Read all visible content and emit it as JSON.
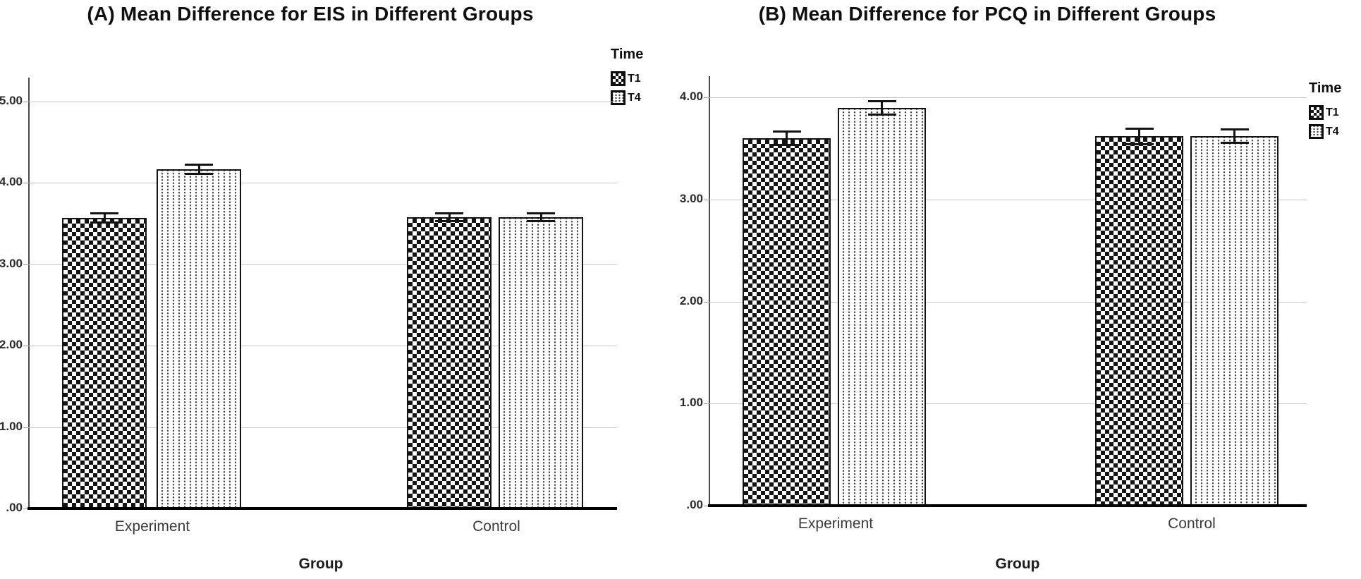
{
  "figure": {
    "background": "#ffffff",
    "grid_color": "#c6c6c6",
    "bar_outline": "#141414"
  },
  "chart_data": [
    {
      "type": "bar",
      "panel": "A",
      "title": "(A) Mean Difference for EIS in Different Groups",
      "xlabel": "Group",
      "ylabel": "",
      "categories": [
        "Experiment",
        "Control"
      ],
      "legend": {
        "title": "Time",
        "position": "right",
        "items": [
          {
            "label": "T1",
            "pattern": "checker"
          },
          {
            "label": "T4",
            "pattern": "dots"
          }
        ]
      },
      "yticks": [
        {
          "label": "5.00",
          "value": 5
        },
        {
          "label": "4.00",
          "value": 4
        },
        {
          "label": "3.00",
          "value": 3
        },
        {
          "label": "2.00",
          "value": 2
        },
        {
          "label": "1.00",
          "value": 1
        },
        {
          "label": ".00",
          "value": 0
        }
      ],
      "ylim": [
        0,
        5.3
      ],
      "grid": true,
      "error_bars": true,
      "series": [
        {
          "name": "T1",
          "pattern": "checker",
          "values": [
            3.57,
            3.58
          ],
          "errors": [
            0.06,
            0.05
          ]
        },
        {
          "name": "T4",
          "pattern": "dots",
          "values": [
            4.17,
            3.58
          ],
          "errors": [
            0.06,
            0.05
          ]
        }
      ]
    },
    {
      "type": "bar",
      "panel": "B",
      "title": "(B) Mean Difference for PCQ in Different Groups",
      "xlabel": "Group",
      "ylabel": "",
      "categories": [
        "Experiment",
        "Control"
      ],
      "legend": {
        "title": "Time",
        "position": "right",
        "items": [
          {
            "label": "T1",
            "pattern": "checker"
          },
          {
            "label": "T4",
            "pattern": "dots"
          }
        ]
      },
      "yticks": [
        {
          "label": "4.00",
          "value": 4
        },
        {
          "label": "3.00",
          "value": 3
        },
        {
          "label": "2.00",
          "value": 2
        },
        {
          "label": "1.00",
          "value": 1
        },
        {
          "label": ".00",
          "value": 0
        }
      ],
      "ylim": [
        0,
        4.2
      ],
      "grid": true,
      "error_bars": true,
      "series": [
        {
          "name": "T1",
          "pattern": "checker",
          "values": [
            3.6,
            3.62
          ],
          "errors": [
            0.07,
            0.08
          ]
        },
        {
          "name": "T4",
          "pattern": "dots",
          "values": [
            3.9,
            3.62
          ],
          "errors": [
            0.07,
            0.07
          ]
        }
      ]
    }
  ]
}
